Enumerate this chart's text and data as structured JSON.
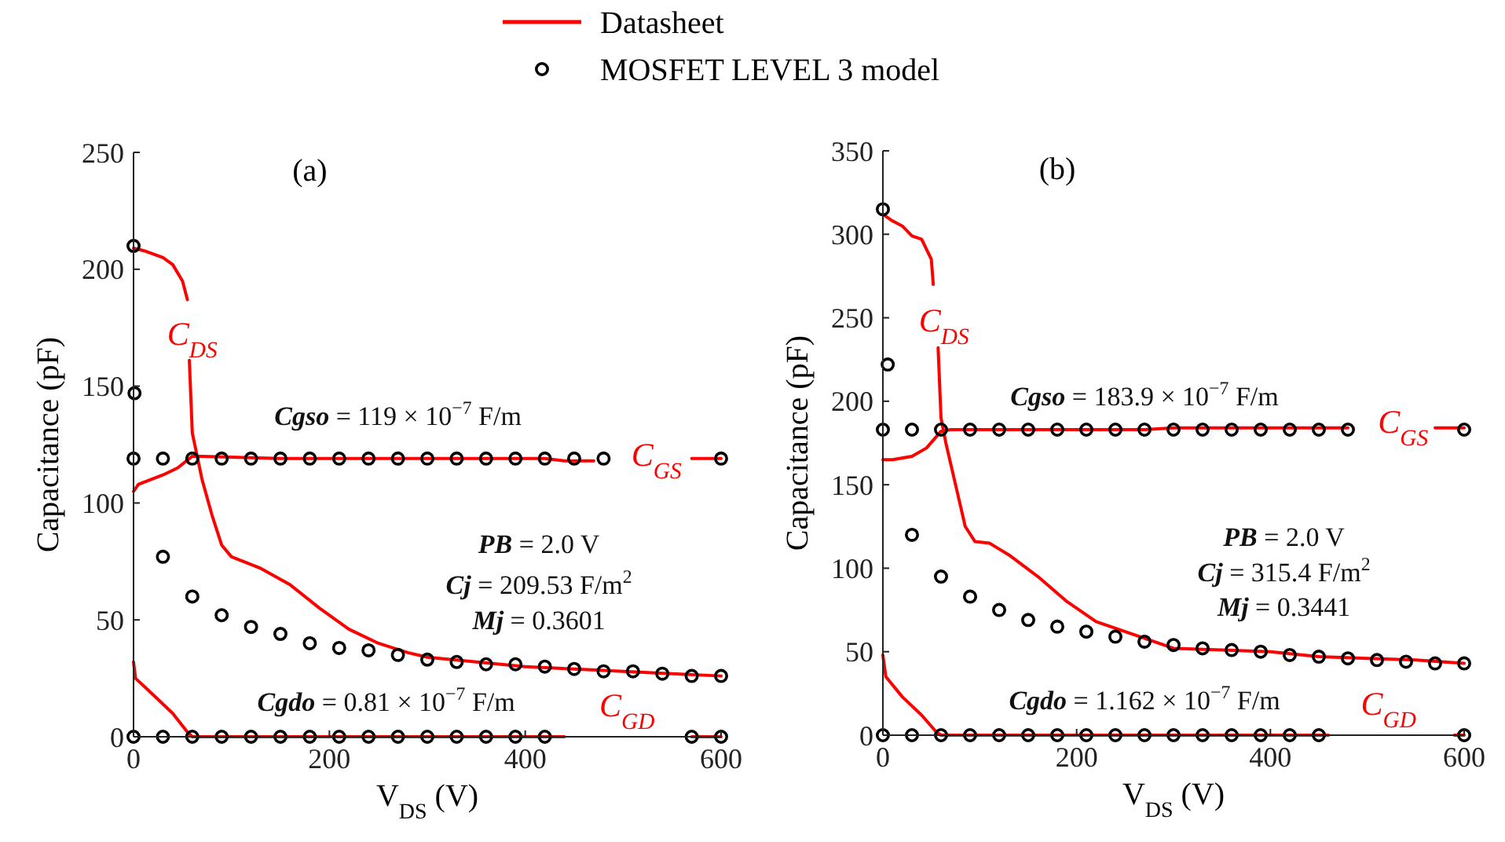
{
  "chart_data": [
    {
      "type": "line",
      "title": "(a)",
      "xlabel": "V$_{DS}$ (V)",
      "ylabel": "Capacitance (pF)",
      "xlim": [
        0,
        600
      ],
      "xticks": [
        0,
        200,
        400,
        600
      ],
      "ylim": [
        0,
        250
      ],
      "yticks": [
        0,
        50,
        100,
        150,
        200,
        250
      ],
      "grid": false,
      "legend": "top",
      "series": [
        {
          "name": "Datasheet",
          "type": "line",
          "color": "#ff0000",
          "marker": "none",
          "line_style": "solid",
          "x": [
            0,
            10,
            30,
            40,
            50,
            55,
            56,
            57,
            60,
            65,
            70,
            80,
            90,
            100,
            130,
            160,
            190,
            220,
            250,
            280,
            300,
            350,
            400,
            450,
            500,
            550,
            600
          ],
          "values": [
            209,
            208,
            205,
            202,
            195,
            187,
            null,
            161,
            130,
            120,
            110,
            95,
            82,
            77,
            72,
            65,
            55,
            46,
            40,
            36,
            34,
            32,
            30,
            29,
            28,
            27,
            26
          ]
        },
        {
          "type": "line",
          "color": "#ff0000",
          "marker": "none",
          "line_style": "solid",
          "x": [
            0,
            5,
            30,
            45,
            60,
            70,
            150,
            250,
            350,
            420,
            440,
            470,
            471,
            570,
            600
          ],
          "values": [
            105,
            108,
            112,
            115,
            120,
            120,
            119,
            119,
            119,
            119,
            118,
            118,
            null,
            119,
            119
          ]
        },
        {
          "type": "line",
          "color": "#ff0000",
          "marker": "none",
          "line_style": "solid",
          "x": [
            0,
            2,
            20,
            40,
            55,
            60,
            200,
            440,
            441,
            570,
            600
          ],
          "values": [
            32,
            25,
            18,
            10,
            2,
            0,
            0,
            0,
            null,
            0,
            0
          ]
        },
        {
          "name": "MOSFET LEVEL 3 model",
          "type": "scatter",
          "color": "#000000",
          "marker": "circle",
          "x": [
            0,
            1,
            30,
            60,
            90,
            120,
            150,
            180,
            210,
            240,
            270,
            300,
            330,
            360,
            390,
            420,
            450,
            480,
            510,
            540,
            570,
            600,
            0,
            30,
            60,
            90,
            120,
            150,
            180,
            210,
            240,
            270,
            300,
            330,
            360,
            390,
            420,
            450,
            480,
            600,
            0,
            30,
            60,
            90,
            120,
            150,
            180,
            210,
            240,
            270,
            300,
            330,
            360,
            390,
            420,
            570,
            600
          ],
          "values": [
            210,
            147,
            77,
            60,
            52,
            47,
            44,
            40,
            38,
            37,
            35,
            33,
            32,
            31,
            31,
            30,
            29,
            28,
            28,
            27,
            26,
            26,
            119,
            119,
            119,
            119,
            119,
            119,
            119,
            119,
            119,
            119,
            119,
            119,
            119,
            119,
            119,
            119,
            119,
            119,
            0,
            0,
            0,
            0,
            0,
            0,
            0,
            0,
            0,
            0,
            0,
            0,
            0,
            0,
            0,
            0,
            0
          ]
        }
      ],
      "annotations": [
        "C$_{DS}$",
        "C$_{GS}$",
        "C$_{GD}$",
        "Cgso = 119 × 10$^{−7}$ F/m",
        "PB = 2.0 V",
        "Cj = 209.53 F/m$^{2}$",
        "Mj = 0.3601",
        "Cgdo = 0.81 × 10$^{−7}$ F/m"
      ]
    },
    {
      "type": "line",
      "title": "(b)",
      "xlabel": "V$_{DS}$ (V)",
      "ylabel": "Capacitance (pF)",
      "xlim": [
        0,
        600
      ],
      "xticks": [
        0,
        200,
        400,
        600
      ],
      "ylim": [
        0,
        350
      ],
      "yticks": [
        0,
        50,
        100,
        150,
        200,
        250,
        300,
        350
      ],
      "grid": false,
      "series": [
        {
          "type": "line",
          "color": "#ff0000",
          "marker": "none",
          "line_style": "solid",
          "x": [
            0,
            10,
            20,
            30,
            40,
            50,
            52,
            53,
            57,
            60,
            65,
            75,
            85,
            95,
            110,
            130,
            160,
            190,
            220,
            250,
            280,
            300,
            350,
            400,
            450,
            500,
            550,
            600
          ],
          "values": [
            312,
            308,
            305,
            299,
            297,
            285,
            270,
            null,
            232,
            190,
            175,
            150,
            125,
            116,
            115,
            108,
            95,
            80,
            68,
            62,
            56,
            52,
            51,
            50,
            47,
            46,
            45,
            43
          ]
        },
        {
          "type": "line",
          "color": "#ff0000",
          "marker": "none",
          "line_style": "solid",
          "x": [
            0,
            10,
            30,
            45,
            60,
            70,
            150,
            270,
            300,
            400,
            480,
            481,
            570,
            600
          ],
          "values": [
            165,
            165,
            167,
            172,
            182,
            183,
            183,
            183,
            184,
            184,
            184,
            null,
            184,
            184
          ]
        },
        {
          "type": "line",
          "color": "#ff0000",
          "marker": "none",
          "line_style": "solid",
          "x": [
            0,
            3,
            20,
            40,
            55,
            60,
            200,
            460,
            461,
            590,
            600
          ],
          "values": [
            48,
            35,
            23,
            12,
            2,
            0,
            0,
            0,
            null,
            0,
            0
          ]
        },
        {
          "type": "scatter",
          "color": "#000000",
          "marker": "circle",
          "x": [
            0,
            5,
            30,
            60,
            90,
            120,
            150,
            180,
            210,
            240,
            270,
            300,
            330,
            360,
            390,
            420,
            450,
            480,
            510,
            540,
            570,
            600,
            0,
            30,
            60,
            90,
            120,
            150,
            180,
            210,
            240,
            270,
            300,
            330,
            360,
            390,
            420,
            450,
            480,
            600,
            0,
            30,
            60,
            90,
            120,
            150,
            180,
            210,
            240,
            270,
            300,
            330,
            360,
            390,
            420,
            450,
            600
          ],
          "values": [
            315,
            222,
            120,
            95,
            83,
            75,
            69,
            65,
            62,
            59,
            56,
            54,
            52,
            51,
            50,
            48,
            47,
            46,
            45,
            44,
            43,
            43,
            183,
            183,
            183,
            183,
            183,
            183,
            183,
            183,
            183,
            183,
            183,
            183,
            183,
            183,
            183,
            183,
            183,
            183,
            0,
            0,
            0,
            0,
            0,
            0,
            0,
            0,
            0,
            0,
            0,
            0,
            0,
            0,
            0,
            0,
            0
          ]
        }
      ],
      "annotations": [
        "C$_{DS}$",
        "C$_{GS}$",
        "C$_{GD}$",
        "Cgso = 183.9 × 10$^{−7}$ F/m",
        "PB = 2.0 V",
        "Cj = 315.4 F/m$^{2}$",
        "Mj = 0.3441",
        "Cgdo = 1.162 × 10$^{−7}$ F/m"
      ]
    }
  ]
}
